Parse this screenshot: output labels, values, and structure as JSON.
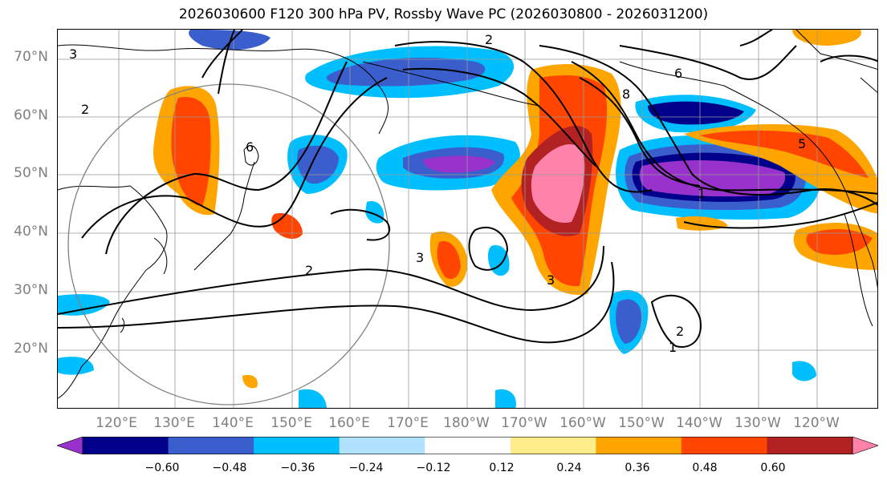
{
  "title": "2026030600 F120 300 hPa PV, Rossby Wave PC (2026030800 - 2026031200)",
  "lat_labels": [
    "70°N",
    "60°N",
    "50°N",
    "40°N",
    "30°N",
    "20°N"
  ],
  "lon_labels": [
    "120°E",
    "130°E",
    "140°E",
    "150°E",
    "160°E",
    "170°E",
    "180°W",
    "170°W",
    "160°W",
    "150°W",
    "140°W",
    "130°W",
    "120°W"
  ],
  "colorbar": {
    "ticks": [
      "−0.60",
      "−0.48",
      "−0.36",
      "−0.24",
      "−0.12",
      "0.12",
      "0.24",
      "0.36",
      "0.48",
      "0.60"
    ],
    "colors": [
      "#9932cc",
      "#00008b",
      "#3a5fcd",
      "#00bfff",
      "#b0e2ff",
      "#ffffff",
      "#ffec8b",
      "#ffa500",
      "#ff4500",
      "#b22222",
      "#ff82ab"
    ]
  },
  "contour_labels": [
    "3",
    "2",
    "2",
    "6",
    "8",
    "5",
    "1",
    "2",
    "3",
    "3",
    "6",
    "2",
    "1"
  ]
}
